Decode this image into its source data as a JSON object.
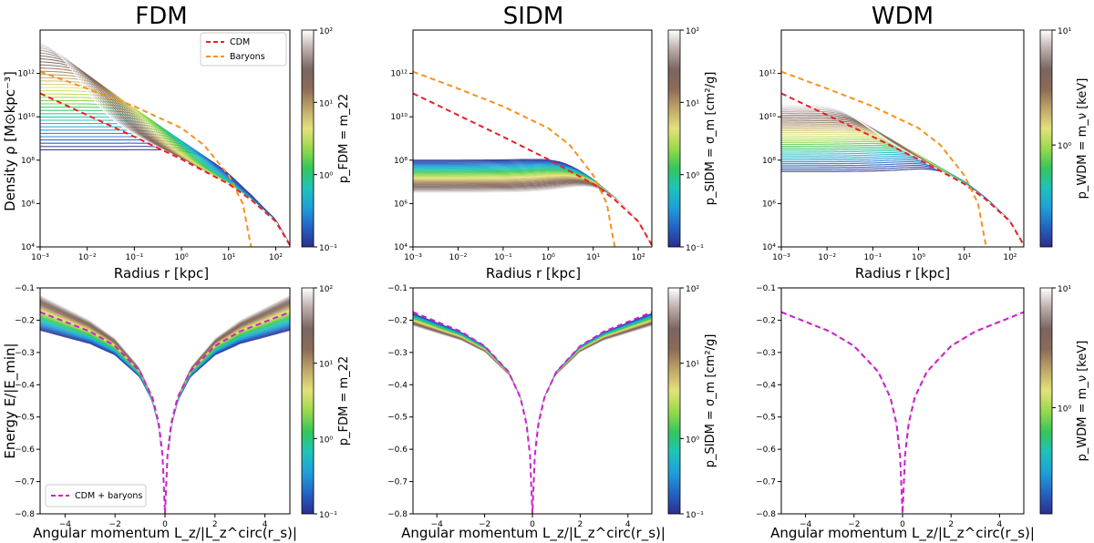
{
  "figure": {
    "panel_titles": [
      "FDM",
      "SIDM",
      "WDM"
    ],
    "top_xlabel": "Radius r [kpc]",
    "top_ylabel": "Density ρ [M⊙kpc⁻³]",
    "bottom_xlabel": "Angular momentum L_z/|L_z^circ(r_s)|",
    "bottom_ylabel": "Energy E/|E_min|"
  },
  "chart_data": [
    {
      "id": "fdm_density",
      "type": "line",
      "title": "FDM",
      "xscale": "log",
      "yscale": "log",
      "xlim": [
        0.001,
        200
      ],
      "ylim": [
        10000,
        100000000000000
      ],
      "xticks": [
        "10⁻³",
        "10⁻²",
        "10⁻¹",
        "10⁰",
        "10¹",
        "10²"
      ],
      "yticks": [
        "10⁴",
        "10⁶",
        "10⁸",
        "10¹⁰",
        "10¹²"
      ],
      "reference_series": [
        {
          "name": "CDM",
          "color": "#e8212a",
          "style": "dashed",
          "x": [
            0.001,
            0.01,
            0.1,
            1,
            10,
            30,
            100,
            200
          ],
          "y": [
            120000000000.0,
            12000000000.0,
            1200000000.0,
            110000000.0,
            8000000.0,
            1500000.0,
            150000.0,
            12000.0
          ]
        },
        {
          "name": "Baryons",
          "color": "#f5921e",
          "style": "dashed",
          "x": [
            0.001,
            0.01,
            0.1,
            1,
            3,
            10,
            20,
            30
          ],
          "y": [
            1200000000000.0,
            200000000000.0,
            30000000000.0,
            3000000000.0,
            500000000.0,
            20000000.0,
            1000000.0,
            10000.0
          ]
        }
      ],
      "family": {
        "parameter": "m22",
        "min": 0.1,
        "max": 100,
        "core_density_range": [
          300000000.0,
          60000000000000.0
        ],
        "core_radius_range": [
          5,
          0.005
        ]
      },
      "legend": [
        "CDM",
        "Baryons"
      ]
    },
    {
      "id": "sidm_density",
      "type": "line",
      "title": "SIDM",
      "xscale": "log",
      "yscale": "log",
      "xlim": [
        0.001,
        200
      ],
      "ylim": [
        10000,
        100000000000000
      ],
      "xticks": [
        "10⁻³",
        "10⁻²",
        "10⁻¹",
        "10⁰",
        "10¹",
        "10²"
      ],
      "yticks": [
        "10⁴",
        "10⁶",
        "10⁸",
        "10¹⁰",
        "10¹²"
      ],
      "reference_series": [
        {
          "name": "CDM",
          "color": "#e8212a",
          "style": "dashed",
          "x": [
            0.001,
            0.01,
            0.1,
            1,
            10,
            30,
            100,
            200
          ],
          "y": [
            120000000000.0,
            12000000000.0,
            1200000000.0,
            110000000.0,
            8000000.0,
            1500000.0,
            150000.0,
            12000.0
          ]
        },
        {
          "name": "Baryons",
          "color": "#f5921e",
          "style": "dashed",
          "x": [
            0.001,
            0.01,
            0.1,
            1,
            3,
            10,
            20,
            30
          ],
          "y": [
            1200000000000.0,
            200000000000.0,
            30000000000.0,
            3000000000.0,
            500000000.0,
            20000000.0,
            1000000.0,
            10000.0
          ]
        }
      ],
      "family": {
        "parameter": "sigma_m",
        "min": 0.1,
        "max": 100,
        "core_density_range": [
          100000000.0,
          3000000.0
        ],
        "core_radius_range": [
          3,
          8
        ]
      }
    },
    {
      "id": "wdm_density",
      "type": "line",
      "title": "WDM",
      "xscale": "log",
      "yscale": "log",
      "xlim": [
        0.001,
        200
      ],
      "ylim": [
        10000,
        100000000000000
      ],
      "xticks": [
        "10⁻³",
        "10⁻²",
        "10⁻¹",
        "10⁰",
        "10¹",
        "10²"
      ],
      "yticks": [
        "10⁴",
        "10⁶",
        "10⁸",
        "10¹⁰",
        "10¹²"
      ],
      "reference_series": [
        {
          "name": "CDM",
          "color": "#e8212a",
          "style": "dashed",
          "x": [
            0.001,
            0.01,
            0.1,
            1,
            10,
            30,
            100,
            200
          ],
          "y": [
            120000000000.0,
            12000000000.0,
            1200000000.0,
            110000000.0,
            8000000.0,
            1500000.0,
            150000.0,
            12000.0
          ]
        },
        {
          "name": "Baryons",
          "color": "#f5921e",
          "style": "dashed",
          "x": [
            0.001,
            0.01,
            0.1,
            1,
            3,
            10,
            20,
            30
          ],
          "y": [
            1200000000000.0,
            200000000000.0,
            30000000000.0,
            3000000000.0,
            500000000.0,
            20000000.0,
            1000000.0,
            10000.0
          ]
        }
      ],
      "family": {
        "parameter": "m_nu",
        "min": 0.05,
        "max": 10,
        "core_density_range": [
          30000000.0,
          40000000000.0
        ],
        "core_radius_range": [
          3,
          0.03
        ]
      }
    },
    {
      "id": "fdm_energy",
      "type": "line",
      "xlim": [
        -5,
        5
      ],
      "ylim": [
        -0.8,
        -0.1
      ],
      "xticks": [
        "−4",
        "−2",
        "0",
        "2",
        "4"
      ],
      "yticks": [
        "−0.8",
        "−0.7",
        "−0.6",
        "−0.5",
        "−0.4",
        "−0.3",
        "−0.2",
        "−0.1"
      ],
      "reference_series": [
        {
          "name": "CDM + baryons",
          "color": "#cc22cc",
          "style": "dashed",
          "x": [
            0,
            0.1,
            0.25,
            0.5,
            1,
            2,
            3,
            4,
            5
          ],
          "y": [
            -0.8,
            -0.62,
            -0.52,
            -0.44,
            -0.36,
            -0.28,
            -0.235,
            -0.205,
            -0.175
          ]
        }
      ],
      "family": {
        "parameter": "m22",
        "min": 0.1,
        "max": 100,
        "edge_energy_range": [
          -0.23,
          -0.12
        ]
      },
      "legend": [
        "CDM + baryons"
      ]
    },
    {
      "id": "sidm_energy",
      "type": "line",
      "xlim": [
        -5,
        5
      ],
      "ylim": [
        -0.8,
        -0.1
      ],
      "xticks": [
        "−4",
        "−2",
        "0",
        "2",
        "4"
      ],
      "yticks": [
        "−0.8",
        "−0.7",
        "−0.6",
        "−0.5",
        "−0.4",
        "−0.3",
        "−0.2",
        "−0.1"
      ],
      "reference_series": [
        {
          "name": "CDM + baryons",
          "color": "#cc22cc",
          "style": "dashed",
          "x": [
            0,
            0.1,
            0.25,
            0.5,
            1,
            2,
            3,
            4,
            5
          ],
          "y": [
            -0.8,
            -0.62,
            -0.52,
            -0.44,
            -0.36,
            -0.28,
            -0.235,
            -0.205,
            -0.175
          ]
        }
      ],
      "family": {
        "parameter": "sigma_m",
        "min": 0.1,
        "max": 100,
        "edge_energy_range": [
          -0.18,
          -0.22
        ]
      }
    },
    {
      "id": "wdm_energy",
      "type": "line",
      "xlim": [
        -5,
        5
      ],
      "ylim": [
        -0.8,
        -0.1
      ],
      "xticks": [
        "−4",
        "−2",
        "0",
        "2",
        "4"
      ],
      "yticks": [
        "−0.8",
        "−0.7",
        "−0.6",
        "−0.5",
        "−0.4",
        "−0.3",
        "−0.2",
        "−0.1"
      ],
      "reference_series": [
        {
          "name": "CDM + baryons",
          "color": "#cc22cc",
          "style": "dashed",
          "x": [
            0,
            0.1,
            0.25,
            0.5,
            1,
            2,
            3,
            4,
            5
          ],
          "y": [
            -0.8,
            -0.62,
            -0.52,
            -0.44,
            -0.36,
            -0.28,
            -0.235,
            -0.205,
            -0.175
          ]
        }
      ],
      "family": {
        "parameter": "m_nu",
        "min": 0.05,
        "max": 10,
        "edge_energy_range": [
          -0.175,
          -0.175
        ]
      }
    }
  ],
  "colorbars": [
    {
      "id": "cb_fdm",
      "label": "p_FDM = m_22",
      "ticks": [
        "10²",
        "10¹",
        "10⁰",
        "10⁻¹"
      ]
    },
    {
      "id": "cb_sidm",
      "label": "p_SIDM = σ_m [cm²/g]",
      "ticks": [
        "10²",
        "10¹",
        "10⁰",
        "10⁻¹"
      ]
    },
    {
      "id": "cb_wdm",
      "label": "p_WDM = m_ν [keV]",
      "ticks": [
        "10¹",
        "10⁰"
      ]
    }
  ],
  "colormap": [
    "#2b2e8c",
    "#2463c4",
    "#1f9fd8",
    "#1dc3b9",
    "#36c65a",
    "#9ad94a",
    "#e3e27b",
    "#bfa769",
    "#8c6b57",
    "#7a6560",
    "#b9aaa8",
    "#ffffff"
  ]
}
